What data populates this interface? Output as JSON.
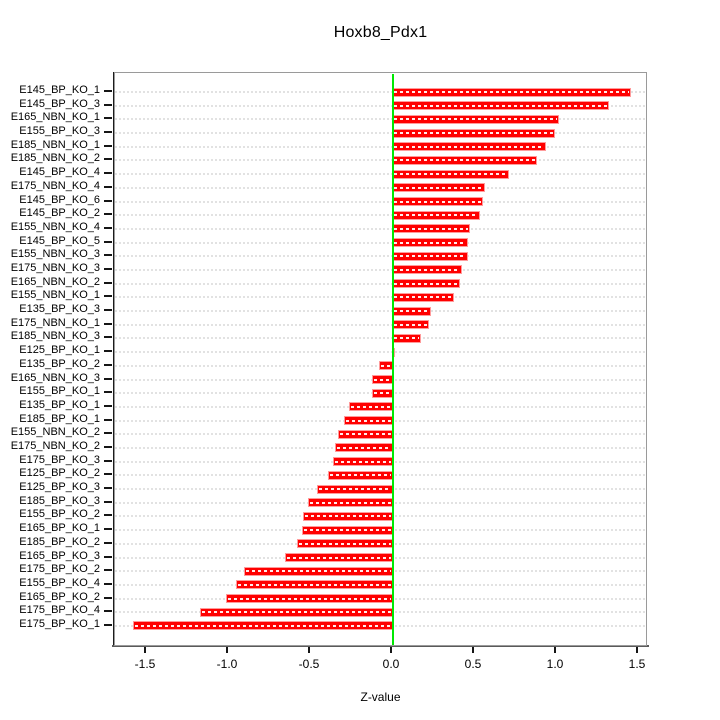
{
  "chart_data": {
    "type": "bar",
    "orientation": "horizontal",
    "title": "Hoxb8_Pdx1",
    "xlabel": "Z-value",
    "ylabel": "",
    "xlim": [
      -1.69,
      1.56
    ],
    "x_ticks": [
      -1.5,
      -1.0,
      -0.5,
      0.0,
      0.5,
      1.0,
      1.5
    ],
    "x_tick_labels": [
      "-1.5",
      "-1.0",
      "-0.5",
      "0.0",
      "0.5",
      "1.0",
      "1.5"
    ],
    "grid": true,
    "legend": false,
    "categories": [
      "E145_BP_KO_1",
      "E145_BP_KO_3",
      "E165_NBN_KO_1",
      "E155_BP_KO_3",
      "E185_NBN_KO_1",
      "E185_NBN_KO_2",
      "E145_BP_KO_4",
      "E175_NBN_KO_4",
      "E145_BP_KO_6",
      "E145_BP_KO_2",
      "E155_NBN_KO_4",
      "E145_BP_KO_5",
      "E155_NBN_KO_3",
      "E175_NBN_KO_3",
      "E165_NBN_KO_2",
      "E155_NBN_KO_1",
      "E135_BP_KO_3",
      "E175_NBN_KO_1",
      "E185_NBN_KO_3",
      "E125_BP_KO_1",
      "E135_BP_KO_2",
      "E165_NBN_KO_3",
      "E155_BP_KO_1",
      "E135_BP_KO_1",
      "E185_BP_KO_1",
      "E155_NBN_KO_2",
      "E175_NBN_KO_2",
      "E175_BP_KO_3",
      "E125_BP_KO_2",
      "E125_BP_KO_3",
      "E185_BP_KO_3",
      "E155_BP_KO_2",
      "E165_BP_KO_1",
      "E185_BP_KO_2",
      "E165_BP_KO_3",
      "E175_BP_KO_2",
      "E155_BP_KO_4",
      "E165_BP_KO_2",
      "E175_BP_KO_4",
      "E175_BP_KO_1"
    ],
    "values": [
      1.45,
      1.32,
      1.01,
      0.99,
      0.93,
      0.88,
      0.71,
      0.56,
      0.55,
      0.53,
      0.47,
      0.46,
      0.46,
      0.42,
      0.41,
      0.37,
      0.23,
      0.22,
      0.17,
      0.01,
      -0.08,
      -0.12,
      -0.12,
      -0.26,
      -0.29,
      -0.33,
      -0.35,
      -0.36,
      -0.39,
      -0.46,
      -0.51,
      -0.54,
      -0.55,
      -0.58,
      -0.65,
      -0.9,
      -0.95,
      -1.01,
      -1.17,
      -1.58
    ],
    "colors": {
      "bar_fill": "#FF0000",
      "bar_border": "#FF9B9B",
      "zero_line": "#00E903",
      "grid_line": "#E2E2E2",
      "frame": "#9A9A9A",
      "axis": "#161616"
    }
  }
}
